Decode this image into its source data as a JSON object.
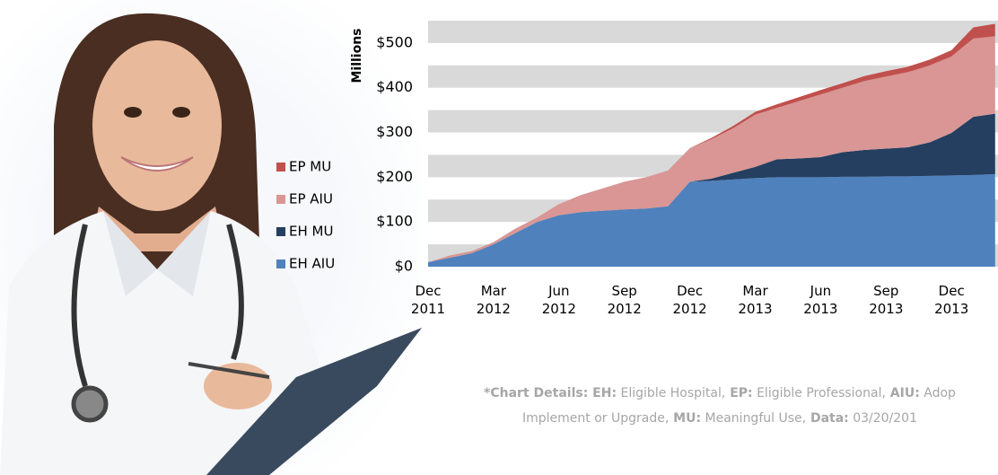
{
  "chart_data": {
    "type": "stacked-area",
    "y_label": "Millions",
    "x": [
      "Dec 2011",
      null,
      null,
      "Mar 2012",
      null,
      null,
      "Jun 2012",
      null,
      null,
      "Sep 2012",
      null,
      null,
      "Dec 2012",
      null,
      null,
      "Mar 2013",
      null,
      null,
      "Jun 2013",
      null,
      null,
      "Sep 2013",
      null,
      null,
      "Dec 2013",
      null,
      null
    ],
    "ylim": [
      0,
      550
    ],
    "yticks": [
      {
        "value": 0,
        "label": "$0"
      },
      {
        "value": 100,
        "label": "$100"
      },
      {
        "value": 200,
        "label": "$200"
      },
      {
        "value": 300,
        "label": "$300"
      },
      {
        "value": 400,
        "label": "$400"
      },
      {
        "value": 500,
        "label": "$500"
      }
    ],
    "grid": true,
    "legend": "left",
    "series": [
      {
        "name": "EH AIU",
        "color": "#4f81bd",
        "values": [
          10,
          20,
          30,
          50,
          75,
          100,
          115,
          122,
          125,
          128,
          130,
          135,
          190,
          192,
          195,
          198,
          200,
          200,
          200,
          201,
          201,
          202,
          202,
          203,
          204,
          205,
          207
        ]
      },
      {
        "name": "EH MU",
        "color": "#243f60",
        "values": [
          0,
          0,
          0,
          0,
          0,
          0,
          0,
          0,
          0,
          0,
          0,
          0,
          0,
          5,
          15,
          25,
          40,
          42,
          45,
          55,
          60,
          62,
          65,
          75,
          95,
          130,
          135
        ]
      },
      {
        "name": "EP AIU",
        "color": "#d99694",
        "values": [
          0,
          5,
          5,
          5,
          10,
          10,
          25,
          38,
          50,
          62,
          70,
          80,
          75,
          88,
          100,
          117,
          115,
          128,
          140,
          144,
          154,
          161,
          168,
          172,
          171,
          175,
          173
        ]
      },
      {
        "name": "EP MU",
        "color": "#c0504d",
        "values": [
          0,
          0,
          0,
          0,
          0,
          0,
          0,
          0,
          0,
          0,
          0,
          0,
          0,
          3,
          5,
          6,
          8,
          9,
          10,
          10,
          11,
          12,
          12,
          13,
          14,
          25,
          28
        ]
      }
    ]
  },
  "footnote": [
    [
      {
        "text": "*Chart Details:",
        "bold": true
      },
      {
        "text": " EH:",
        "bold": true
      },
      {
        "text": " Eligible Hospital,"
      },
      {
        "text": " EP:",
        "bold": true
      },
      {
        "text": " Eligible Professional,"
      },
      {
        "text": " AIU:",
        "bold": true
      },
      {
        "text": " Adop"
      }
    ],
    [
      {
        "text": "Implement or Upgrade,"
      },
      {
        "text": " MU:",
        "bold": true
      },
      {
        "text": " Meaningful Use,"
      },
      {
        "text": " Data:",
        "bold": true
      },
      {
        "text": " 03/20/201"
      }
    ]
  ]
}
